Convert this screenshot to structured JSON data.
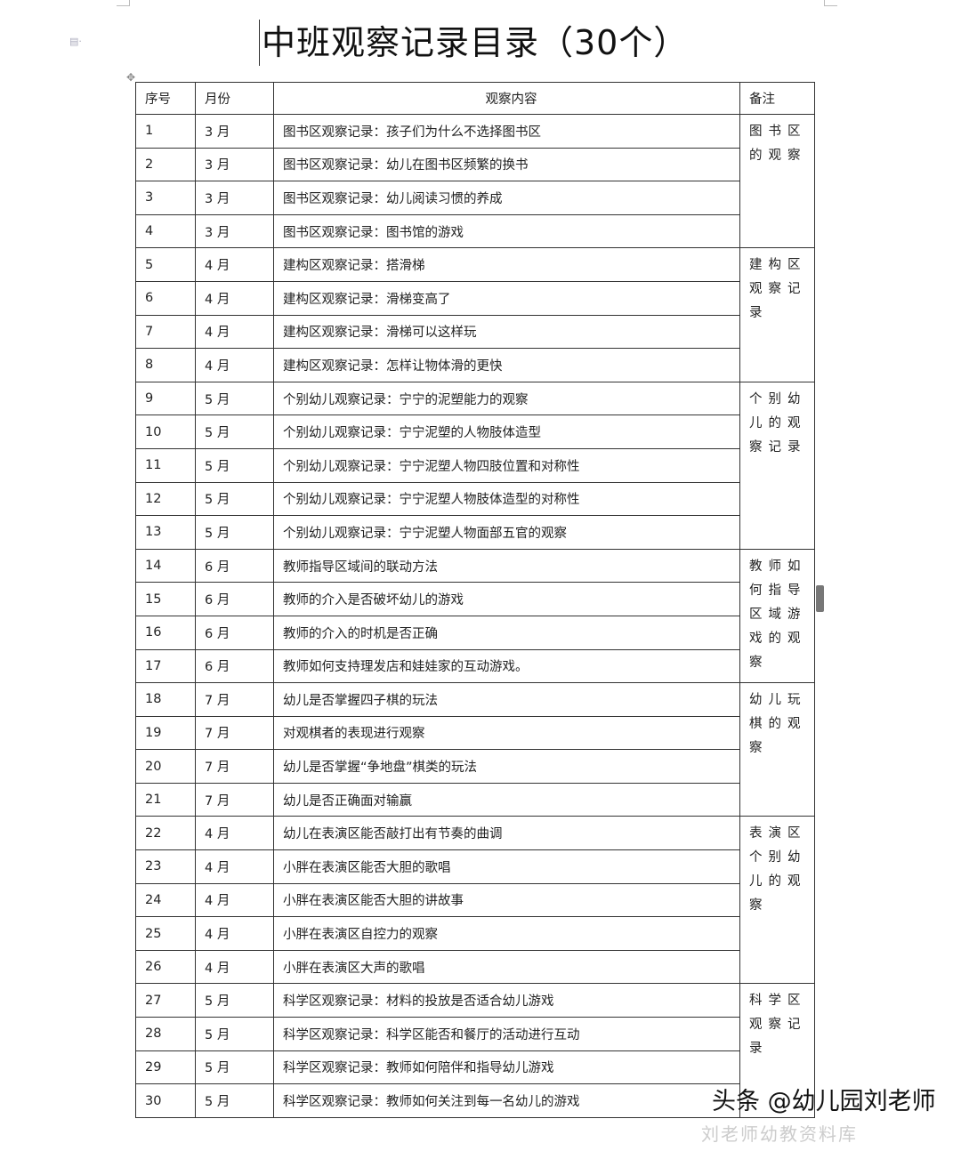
{
  "title": "中班观察记录目录（30个）",
  "table": {
    "headers": [
      "序号",
      "月份",
      "观察内容",
      "备注"
    ],
    "rows": [
      [
        "1",
        "3 月",
        "图书区观察记录：孩子们为什么不选择图书区"
      ],
      [
        "2",
        "3 月",
        "图书区观察记录：幼儿在图书区频繁的换书"
      ],
      [
        "3",
        "3 月",
        "图书区观察记录：幼儿阅读习惯的养成"
      ],
      [
        "4",
        "3 月",
        "图书区观察记录：图书馆的游戏"
      ],
      [
        "5",
        "4 月",
        "建构区观察记录：搭滑梯"
      ],
      [
        "6",
        "4 月",
        "建构区观察记录：滑梯变高了"
      ],
      [
        "7",
        "4 月",
        "建构区观察记录：滑梯可以这样玩"
      ],
      [
        "8",
        "4 月",
        "建构区观察记录：怎样让物体滑的更快"
      ],
      [
        "9",
        "5 月",
        "个别幼儿观察记录：宁宁的泥塑能力的观察"
      ],
      [
        "10",
        "5 月",
        "个别幼儿观察记录：宁宁泥塑的人物肢体造型"
      ],
      [
        "11",
        "5 月",
        "个别幼儿观察记录：宁宁泥塑人物四肢位置和对称性"
      ],
      [
        "12",
        "5 月",
        "个别幼儿观察记录：宁宁泥塑人物肢体造型的对称性"
      ],
      [
        "13",
        "5 月",
        "个别幼儿观察记录：宁宁泥塑人物面部五官的观察"
      ],
      [
        "14",
        "6 月",
        "教师指导区域间的联动方法"
      ],
      [
        "15",
        "6 月",
        "教师的介入是否破坏幼儿的游戏"
      ],
      [
        "16",
        "6 月",
        "教师的介入的时机是否正确"
      ],
      [
        "17",
        "6 月",
        "教师如何支持理发店和娃娃家的互动游戏。"
      ],
      [
        "18",
        "7 月",
        "幼儿是否掌握四子棋的玩法"
      ],
      [
        "19",
        "7 月",
        "对观棋者的表现进行观察"
      ],
      [
        "20",
        "7 月",
        "幼儿是否掌握“争地盘”棋类的玩法"
      ],
      [
        "21",
        "7 月",
        "幼儿是否正确面对输赢"
      ],
      [
        "22",
        "4 月",
        "幼儿在表演区能否敲打出有节奏的曲调"
      ],
      [
        "23",
        "4 月",
        "小胖在表演区能否大胆的歌唱"
      ],
      [
        "24",
        "4 月",
        "小胖在表演区能否大胆的讲故事"
      ],
      [
        "25",
        "4 月",
        "小胖在表演区自控力的观察"
      ],
      [
        "26",
        "4 月",
        "小胖在表演区大声的歌唱"
      ],
      [
        "27",
        "5 月",
        "科学区观察记录：材料的投放是否适合幼儿游戏"
      ],
      [
        "28",
        "5 月",
        "科学区观察记录：科学区能否和餐厅的活动进行互动"
      ],
      [
        "29",
        "5 月",
        "科学区观察记录：教师如何陪伴和指导幼儿游戏"
      ],
      [
        "30",
        "5 月",
        "科学区观察记录：教师如何关注到每一名幼儿的游戏"
      ]
    ],
    "notes": [
      {
        "text": "图书区的观察",
        "span": 4
      },
      {
        "text": "建构区观察记录",
        "span": 4
      },
      {
        "text": "个别幼儿的观察记录",
        "span": 5
      },
      {
        "text": "教师如何指导区域游戏的观察",
        "span": 4
      },
      {
        "text": "幼儿玩棋的观察",
        "span": 4
      },
      {
        "text": "表演区个别幼儿的观察",
        "span": 5
      },
      {
        "text": "科学区观察记录",
        "span": 4
      }
    ]
  },
  "watermark": {
    "faint": "刘老师幼教资料库",
    "main": "头条 @幼儿园刘老师"
  }
}
